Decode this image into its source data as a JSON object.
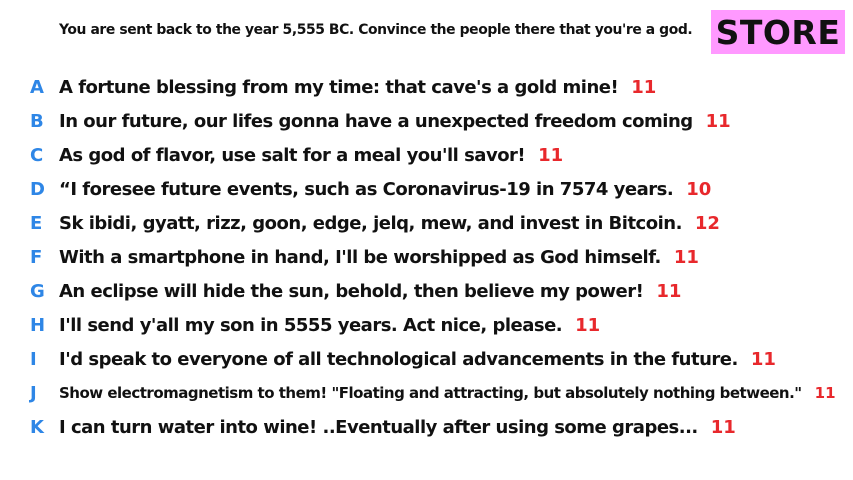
{
  "prompt": "You are sent back to the year 5,555 BC. Convince the people there that you're a god.",
  "store": {
    "label": "STORE",
    "color": "#ff99ff"
  },
  "colors": {
    "letter": "#2e86e6",
    "score": "#e8282c",
    "text": "#111111"
  },
  "answers": [
    {
      "letter": "A",
      "text": "A fortune blessing from my time: that cave's a gold mine!",
      "score": "11"
    },
    {
      "letter": "B",
      "text": "In our future, our lifes gonna have a unexpected freedom coming",
      "score": "11"
    },
    {
      "letter": "C",
      "text": "As god of flavor, use salt for a meal you'll savor!",
      "score": "11"
    },
    {
      "letter": "D",
      "text": "“I foresee future events, such as Coronavirus-19 in 7574 years.",
      "score": "10"
    },
    {
      "letter": "E",
      "text": "Sk ibidi, gyatt, rizz, goon, edge, jelq, mew, and invest in Bitcoin.",
      "score": "12"
    },
    {
      "letter": "F",
      "text": "With a smartphone in hand, I'll be worshipped as God himself.",
      "score": "11"
    },
    {
      "letter": "G",
      "text": "An eclipse will hide the sun, behold, then believe my power!",
      "score": "11"
    },
    {
      "letter": "H",
      "text": "I'll send y'all my son in 5555 years. Act nice, please.",
      "score": "11"
    },
    {
      "letter": "I",
      "text": "I'd speak to everyone of all technological advancements in the future.",
      "score": "11"
    },
    {
      "letter": "J",
      "text": "Show electromagnetism to them! \"Floating and attracting, but absolutely nothing between.\"",
      "score": "11"
    },
    {
      "letter": "K",
      "text": "I can turn water into wine! ..Eventually after using some grapes...",
      "score": "11"
    }
  ]
}
